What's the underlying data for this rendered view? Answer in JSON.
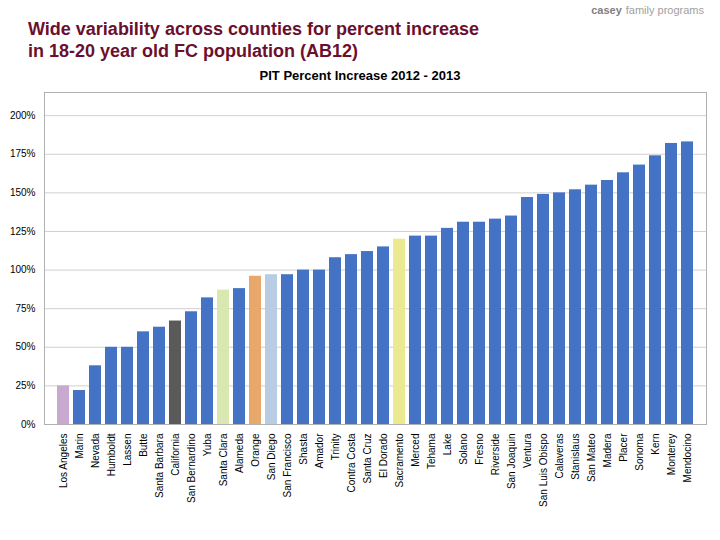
{
  "chart_data": {
    "type": "bar",
    "title": "PIT Percent Increase 2012 - 2013",
    "subtitle": [
      "Wide variability across counties for percent increase",
      "in 18-20 year old FC population (AB12)"
    ],
    "annotations": [
      "casey",
      "family programs"
    ],
    "categories": [
      "Los Angeles",
      "Marin",
      "Nevada",
      "Humboldt",
      "Lassen",
      "Butte",
      "Santa Barbara",
      "California",
      "San Bernardino",
      "Yuba",
      "Santa Clara",
      "Alameda",
      "Orange",
      "San Diego",
      "San Francisco",
      "Shasta",
      "Amador",
      "Trinity",
      "Contra Costa",
      "Santa Cruz",
      "El Dorado",
      "Sacramento",
      "Merced",
      "Tehama",
      "Lake",
      "Solano",
      "Fresno",
      "Riverside",
      "San Joaquin",
      "Ventura",
      "San Luis Obispo",
      "Calaveras",
      "Stanislaus",
      "San Mateo",
      "Madera",
      "Placer",
      "Sonoma",
      "Kern",
      "Monterey",
      "Mendocino"
    ],
    "values": [
      25,
      22,
      38,
      50,
      50,
      60,
      63,
      67,
      73,
      82,
      87,
      88,
      96,
      97,
      97,
      100,
      100,
      108,
      110,
      112,
      115,
      120,
      122,
      122,
      127,
      131,
      131,
      133,
      135,
      147,
      149,
      150,
      152,
      155,
      158,
      163,
      168,
      174,
      182,
      183
    ],
    "colors": [
      "#c8aad0",
      "#4472c4",
      "#4472c4",
      "#4472c4",
      "#4472c4",
      "#4472c4",
      "#4472c4",
      "#5a5a5a",
      "#4472c4",
      "#4472c4",
      "#d8e8b0",
      "#4472c4",
      "#e8a86c",
      "#b8cce4",
      "#4472c4",
      "#4472c4",
      "#4472c4",
      "#4472c4",
      "#4472c4",
      "#4472c4",
      "#4472c4",
      "#ecea90",
      "#4472c4",
      "#4472c4",
      "#4472c4",
      "#4472c4",
      "#4472c4",
      "#4472c4",
      "#4472c4",
      "#4472c4",
      "#4472c4",
      "#4472c4",
      "#4472c4",
      "#4472c4",
      "#4472c4",
      "#4472c4",
      "#4472c4",
      "#4472c4",
      "#4472c4",
      "#4472c4"
    ],
    "ylim": [
      0,
      215
    ],
    "yticks": [
      {
        "value": 0,
        "label": "0%"
      },
      {
        "value": 25,
        "label": "25%"
      },
      {
        "value": 50,
        "label": "50%"
      },
      {
        "value": 75,
        "label": "75%"
      },
      {
        "value": 100,
        "label": "100%"
      },
      {
        "value": 125,
        "label": "125%"
      },
      {
        "value": 150,
        "label": "150%"
      },
      {
        "value": 175,
        "label": "175%"
      },
      {
        "value": 200,
        "label": "200%"
      }
    ],
    "grid": true
  }
}
